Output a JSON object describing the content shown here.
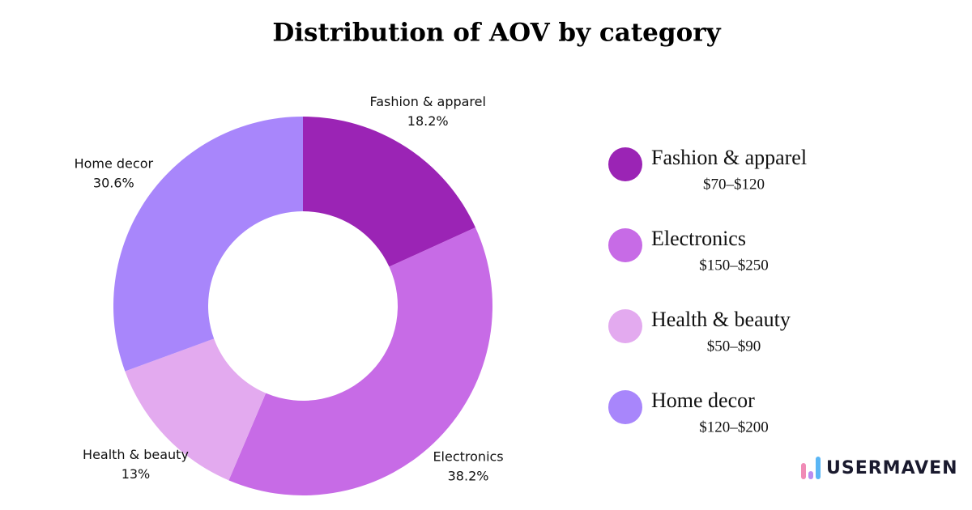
{
  "chart_data": {
    "type": "donut",
    "title": "Distribution of AOV by category",
    "categories": [
      "Fashion & apparel",
      "Electronics",
      "Health & beauty",
      "Home decor"
    ],
    "values": [
      18.2,
      38.2,
      13,
      30.6
    ],
    "value_labels": [
      "18.2%",
      "38.2%",
      "13%",
      "30.6%"
    ],
    "colors": [
      "#9b24b5",
      "#c76be6",
      "#e3aaef",
      "#a886fb"
    ],
    "legend_ranges": [
      "$70–$120",
      "$150–$250",
      "$50–$90",
      "$120–$200"
    ],
    "legend": "right"
  },
  "logo": "USERMAVEN"
}
